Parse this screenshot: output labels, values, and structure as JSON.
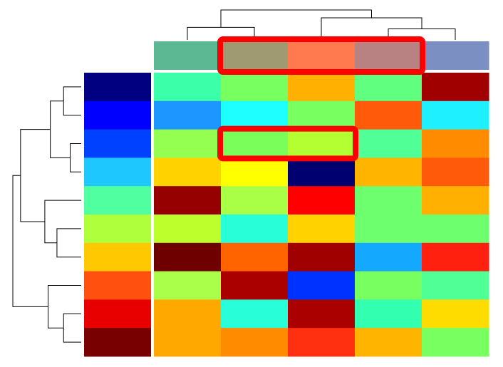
{
  "chart_data": {
    "type": "heatmap",
    "title": "",
    "xlabel": "",
    "ylabel": "",
    "n_rows": 10,
    "n_cols": 5,
    "column_annotation_colors": [
      "#5bb893",
      "#a09a72",
      "#ff7a4f",
      "#b88282",
      "#7b8fc2"
    ],
    "row_annotation_colors": [
      "#000080",
      "#0000ff",
      "#0040ff",
      "#1ec8ff",
      "#50ffa0",
      "#b0ff3c",
      "#ffc800",
      "#ff5010",
      "#e80000",
      "#780000"
    ],
    "cell_colors": [
      [
        "#3cffaa",
        "#78ff60",
        "#ffb000",
        "#60ff80",
        "#a00000"
      ],
      [
        "#1e96ff",
        "#1effff",
        "#78ff60",
        "#ff5a0a",
        "#1ef0ff"
      ],
      [
        "#94ff50",
        "#7aff5a",
        "#b4ff32",
        "#50ff96",
        "#ff8c00"
      ],
      [
        "#ffd200",
        "#ffff00",
        "#000070",
        "#ffb400",
        "#ff5a0a"
      ],
      [
        "#960000",
        "#a8ff46",
        "#ff0000",
        "#6eff6e",
        "#ffb000"
      ],
      [
        "#bcff2c",
        "#28ffd8",
        "#ffd200",
        "#6eff6e",
        "#6eff6e"
      ],
      [
        "#6e0000",
        "#ff6400",
        "#a00000",
        "#14a8ff",
        "#ff2010"
      ],
      [
        "#aaff4a",
        "#aa0000",
        "#0032ff",
        "#78ff60",
        "#50ff96"
      ],
      [
        "#ffa800",
        "#28ffd8",
        "#aa0000",
        "#32ffb0",
        "#ffdc00"
      ],
      [
        "#ffa800",
        "#ff8c00",
        "#ff3010",
        "#ffb400",
        "#78ff60"
      ]
    ],
    "row_dendrogram": [
      [
        2,
        3,
        0.1
      ],
      [
        0,
        1,
        0.16
      ],
      [
        10,
        11,
        0.28
      ],
      [
        5,
        6,
        0.22
      ],
      [
        4,
        13,
        0.33
      ],
      [
        12,
        14,
        0.55
      ],
      [
        8,
        9,
        0.16
      ],
      [
        7,
        16,
        0.3
      ],
      [
        15,
        17,
        0.62
      ]
    ],
    "col_dendrogram": [
      [
        3,
        4,
        0.35
      ],
      [
        0,
        1,
        0.4
      ],
      [
        2,
        5,
        0.7
      ],
      [
        6,
        7,
        0.95
      ]
    ],
    "highlights": [
      {
        "axis": "column-annotation",
        "cols": [
          1,
          3
        ],
        "color": "#ff0000"
      },
      {
        "axis": "cell",
        "row": 2,
        "cols": [
          1,
          2
        ],
        "color": "#ff0000"
      }
    ],
    "grid": false,
    "legend": "none"
  }
}
